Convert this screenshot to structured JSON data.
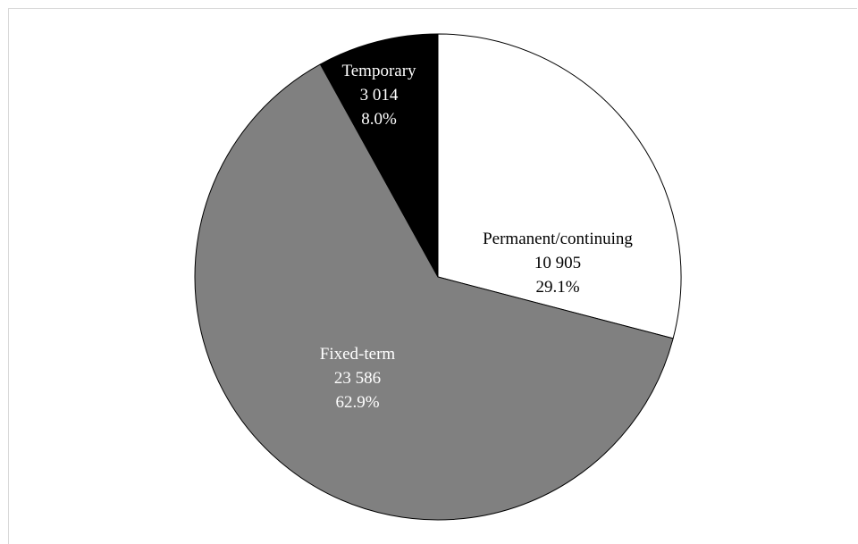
{
  "chart_data": {
    "type": "pie",
    "title": "",
    "slices": [
      {
        "label": "Permanent/continuing",
        "value": 10905,
        "value_text": "10 905",
        "percent_text": "29.1%",
        "color": "#ffffff",
        "text_color": "#000000"
      },
      {
        "label": "Fixed-term",
        "value": 23586,
        "value_text": "23 586",
        "percent_text": "62.9%",
        "color": "#808080",
        "text_color": "#ffffff"
      },
      {
        "label": "Temporary",
        "value": 3014,
        "value_text": "3 014",
        "percent_text": "8.0%",
        "color": "#000000",
        "text_color": "#ffffff"
      }
    ],
    "start_angle": "12 o'clock",
    "direction": "clockwise",
    "slice_outline": "#000000",
    "legend": "none"
  }
}
